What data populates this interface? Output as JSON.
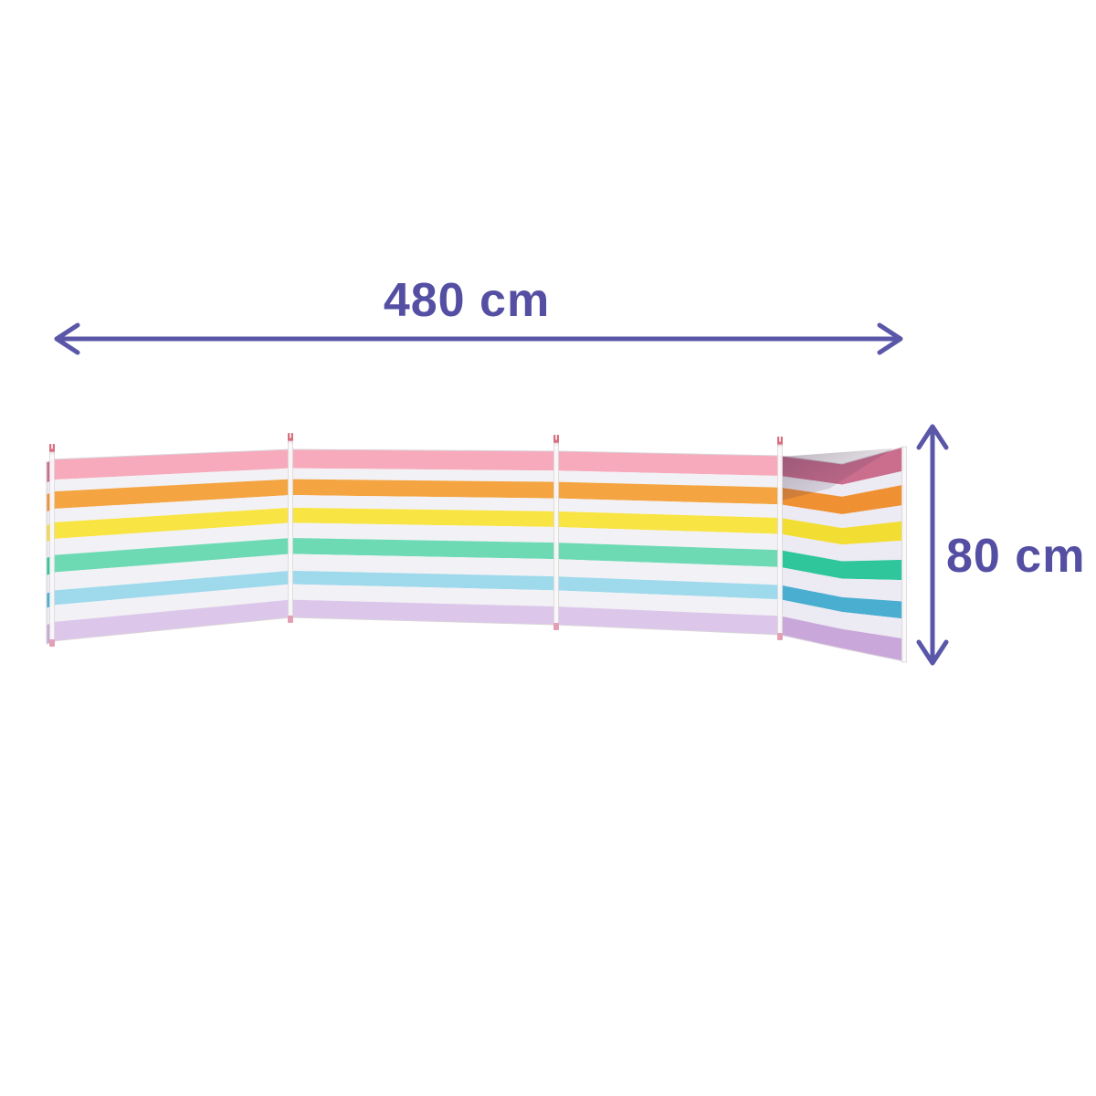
{
  "figure": {
    "type": "product dimension diagram",
    "width_label": "480 cm",
    "height_label": "80 cm",
    "text_color": "#544fa3",
    "arrow_color": "#5b57a8"
  },
  "windbreak": {
    "name": "4-panel pastel striped beach windbreak",
    "panel_count": 4,
    "pole_count": 5,
    "stripe_colors_front": [
      "#f7aabb",
      "#f4a440",
      "#f8e443",
      "#6edab4",
      "#9ed9ec",
      "#dcc7ea"
    ],
    "stripe_colors_side": [
      "#cb6e8e",
      "#ef9033",
      "#f2dd33",
      "#2fc69b",
      "#49aed0",
      "#c9a7da"
    ],
    "stripe_white_front": "#f2f1f5",
    "stripe_white_side": "#eceaf2",
    "panel_edge_color": "#d9d3da",
    "pole_color": "#fbfafa",
    "pole_tip_color": "#d76f7f",
    "pole_bottom_color": "#e39fb4"
  }
}
